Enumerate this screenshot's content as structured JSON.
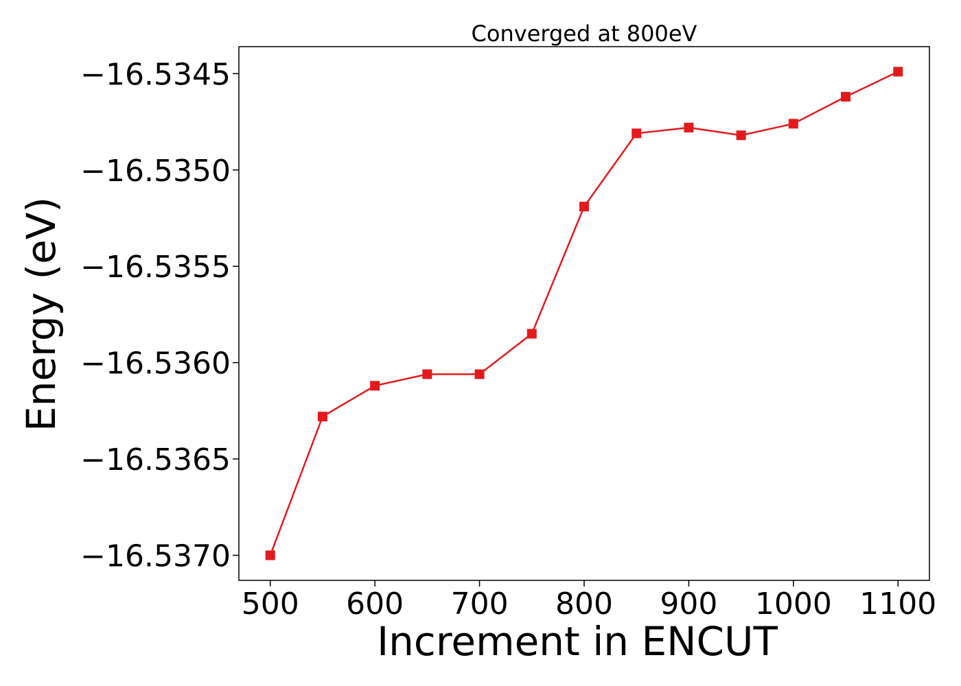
{
  "chart_data": {
    "type": "line",
    "title": "Converged at 800eV",
    "xlabel": "Increment in ENCUT",
    "ylabel": "Energy (eV)",
    "x": [
      500,
      550,
      600,
      650,
      700,
      750,
      800,
      850,
      900,
      950,
      1000,
      1050,
      1100
    ],
    "series": [
      {
        "values": [
          -16.537,
          -16.53628,
          -16.53612,
          -16.53606,
          -16.53606,
          -16.53585,
          -16.53519,
          -16.53481,
          -16.53478,
          -16.53482,
          -16.53476,
          -16.53462,
          -16.53449
        ],
        "color": "#e31a1c",
        "marker": "square"
      }
    ],
    "xlim": [
      470,
      1130
    ],
    "ylim": [
      -16.53713,
      -16.53436
    ],
    "xticks": [
      500,
      600,
      700,
      800,
      900,
      1000,
      1100
    ],
    "xtick_labels": [
      "500",
      "600",
      "700",
      "800",
      "900",
      "1000",
      "1100"
    ],
    "yticks": [
      -16.537,
      -16.5365,
      -16.536,
      -16.5355,
      -16.535,
      -16.5345
    ],
    "ytick_labels": [
      "−16.5370",
      "−16.5365",
      "−16.5360",
      "−16.5355",
      "−16.5350",
      "−16.5345"
    ],
    "grid": false,
    "legend": "none"
  }
}
